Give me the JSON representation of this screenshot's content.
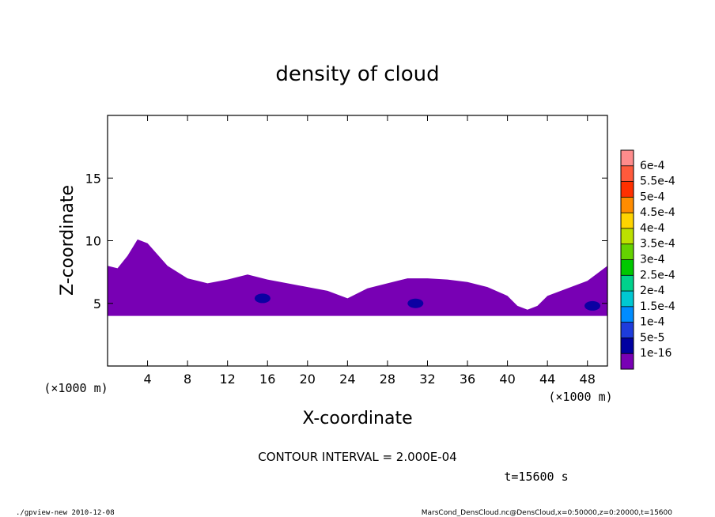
{
  "chart_data": {
    "type": "heatmap",
    "title": "density of cloud",
    "xlabel": "X-coordinate",
    "ylabel": "Z-coordinate",
    "x_unit": "(×1000 m)",
    "y_unit": "(×1000 m)",
    "xlim": [
      0,
      50
    ],
    "ylim": [
      0,
      20
    ],
    "x_ticks": [
      4,
      8,
      12,
      16,
      20,
      24,
      28,
      32,
      36,
      40,
      44,
      48
    ],
    "y_ticks": [
      5,
      10,
      15
    ],
    "colorbar": {
      "labels": [
        "6e-4",
        "5.5e-4",
        "5e-4",
        "4.5e-4",
        "4e-4",
        "3.5e-4",
        "3e-4",
        "2.5e-4",
        "2e-4",
        "1.5e-4",
        "1e-4",
        "5e-5",
        "1e-16"
      ],
      "colors": [
        "#ff8c8c",
        "#ff5a3c",
        "#ff3000",
        "#ff8c00",
        "#ffd400",
        "#bce000",
        "#64d200",
        "#00c800",
        "#00d28c",
        "#00c8d2",
        "#008cff",
        "#1e3cdc",
        "#0000a0",
        "#7800b4"
      ]
    },
    "cloud_base_z": 4,
    "cloud_top_profile": {
      "x": [
        0,
        1,
        2,
        3,
        4,
        6,
        8,
        10,
        12,
        14,
        16,
        18,
        20,
        22,
        24,
        26,
        28,
        30,
        32,
        34,
        36,
        38,
        40,
        41,
        42,
        43,
        44,
        46,
        48,
        49,
        50
      ],
      "z": [
        8,
        7.8,
        8.8,
        10.1,
        9.8,
        8.0,
        7.0,
        6.6,
        6.9,
        7.3,
        6.9,
        6.6,
        6.3,
        6.0,
        5.4,
        6.2,
        6.6,
        7.0,
        7.0,
        6.9,
        6.7,
        6.3,
        5.6,
        4.8,
        4.5,
        4.8,
        5.6,
        6.2,
        6.8,
        7.4,
        8.0
      ]
    },
    "dominant_level": "1e-16",
    "local_maxima": [
      {
        "x": 15.5,
        "z": 5.4,
        "level": "5e-5"
      },
      {
        "x": 30.8,
        "z": 5.0,
        "level": "5e-5"
      },
      {
        "x": 48.5,
        "z": 4.8,
        "level": "5e-5"
      }
    ],
    "contour_interval_text": "CONTOUR INTERVAL = 2.000E-04",
    "time_text": "t=15600 s"
  },
  "footer": {
    "left": "./gpview-new   2010-12-08",
    "right": "MarsCond_DensCloud.nc@DensCloud,x=0:50000,z=0:20000,t=15600"
  }
}
